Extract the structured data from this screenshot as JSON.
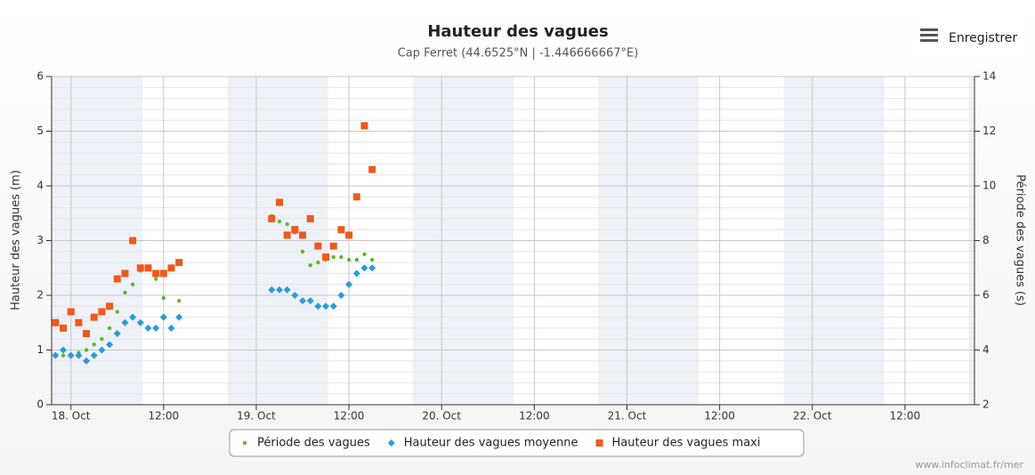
{
  "chart_data": {
    "type": "scatter",
    "title": "Hauteur des vagues",
    "subtitle": "Cap Ferret (44.6525°N | -1.446666667°E)",
    "y_label": "Hauteur des vagues (m)",
    "y2_label": "Période des vagues (s)",
    "export_button": "Enregistrer",
    "credit": "www.infoclimat.fr/mer",
    "x": [
      -2,
      -1,
      0,
      1,
      2,
      3,
      4,
      5,
      6,
      7,
      8,
      9,
      10,
      11,
      12,
      13,
      14,
      26,
      27,
      28,
      29,
      30,
      31,
      32,
      33,
      34,
      35,
      36,
      37,
      38,
      39
    ],
    "xlim": [
      -2.5,
      117
    ],
    "xticks": [
      {
        "value": 0,
        "label": "18. Oct"
      },
      {
        "value": 12,
        "label": "12:00"
      },
      {
        "value": 24,
        "label": "19. Oct"
      },
      {
        "value": 36,
        "label": "12:00"
      },
      {
        "value": 48,
        "label": "20. Oct"
      },
      {
        "value": 60,
        "label": "12:00"
      },
      {
        "value": 72,
        "label": "21. Oct"
      },
      {
        "value": 84,
        "label": "12:00"
      },
      {
        "value": 96,
        "label": "22. Oct"
      },
      {
        "value": 108,
        "label": "12:00"
      }
    ],
    "ylim": [
      0,
      6
    ],
    "yticks": [
      0,
      1,
      2,
      3,
      4,
      5,
      6
    ],
    "y2lim": [
      2,
      14
    ],
    "y2ticks": [
      2,
      4,
      6,
      8,
      10,
      12,
      14
    ],
    "grid": true,
    "plot_bands": [
      [
        -3.7,
        9.3
      ],
      [
        20.3,
        33.3
      ],
      [
        44.3,
        57.3
      ],
      [
        68.3,
        81.3
      ],
      [
        92.3,
        105.3
      ],
      [
        116.3,
        129.3
      ]
    ],
    "plot_band_color": "#eef1f7",
    "legend": "bottom",
    "series": [
      {
        "name": "Période des vagues",
        "color": "#5cb82e",
        "marker": "circle",
        "axis": "y2",
        "values": [
          3.8,
          3.8,
          3.8,
          3.9,
          4.0,
          4.2,
          4.4,
          4.8,
          5.4,
          6.1,
          6.4,
          6.9,
          7.0,
          6.6,
          5.9,
          4.8,
          5.8,
          8.9,
          8.7,
          8.6,
          8.3,
          7.6,
          7.1,
          7.2,
          7.3,
          7.4,
          7.4,
          7.3,
          7.3,
          7.5,
          7.3
        ]
      },
      {
        "name": "Hauteur des vagues moyenne",
        "color": "#2b9ad6",
        "marker": "diamond",
        "axis": "y",
        "values": [
          0.9,
          1.0,
          0.9,
          0.9,
          0.8,
          0.9,
          1.0,
          1.1,
          1.3,
          1.5,
          1.6,
          1.5,
          1.4,
          1.4,
          1.6,
          1.4,
          1.6,
          2.1,
          2.1,
          2.1,
          2.0,
          1.9,
          1.9,
          1.8,
          1.8,
          1.8,
          2.0,
          2.2,
          2.4,
          2.5,
          2.5
        ]
      },
      {
        "name": "Hauteur des vagues maxi",
        "color": "#ef5a1c",
        "marker": "square",
        "axis": "y",
        "values": [
          1.5,
          1.4,
          1.7,
          1.5,
          1.3,
          1.6,
          1.7,
          1.8,
          2.3,
          2.4,
          3.0,
          2.5,
          2.5,
          2.4,
          2.4,
          2.5,
          2.6,
          3.4,
          3.7,
          3.1,
          3.2,
          3.1,
          3.4,
          2.9,
          2.7,
          2.9,
          3.2,
          3.1,
          3.8,
          5.1,
          4.3
        ]
      }
    ]
  }
}
